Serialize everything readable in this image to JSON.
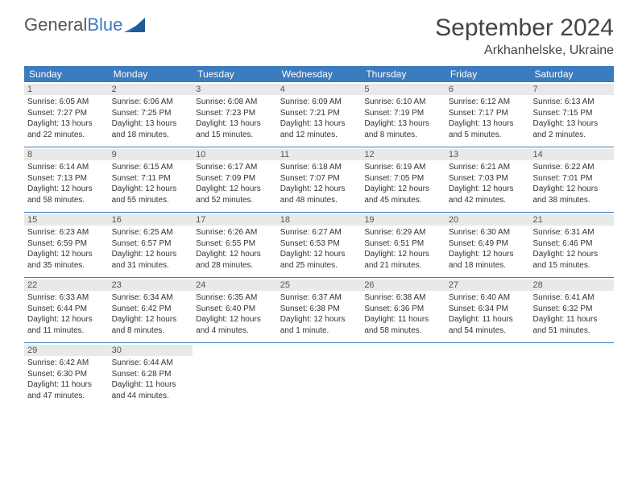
{
  "logo": {
    "text1": "General",
    "text2": "Blue"
  },
  "title": "September 2024",
  "location": "Arkhanhelske, Ukraine",
  "colors": {
    "header_bg": "#3b7bbf",
    "daynum_bg": "#e9e9e9",
    "text": "#333333",
    "title_text": "#444444",
    "divider": "#3b7bbf"
  },
  "typography": {
    "title_fontsize": 30,
    "location_fontsize": 16,
    "weekday_fontsize": 12,
    "daynum_fontsize": 11,
    "content_fontsize": 10
  },
  "weekdays": [
    "Sunday",
    "Monday",
    "Tuesday",
    "Wednesday",
    "Thursday",
    "Friday",
    "Saturday"
  ],
  "days": [
    {
      "n": "1",
      "sr": "6:05 AM",
      "ss": "7:27 PM",
      "dl": "13 hours and 22 minutes."
    },
    {
      "n": "2",
      "sr": "6:06 AM",
      "ss": "7:25 PM",
      "dl": "13 hours and 18 minutes."
    },
    {
      "n": "3",
      "sr": "6:08 AM",
      "ss": "7:23 PM",
      "dl": "13 hours and 15 minutes."
    },
    {
      "n": "4",
      "sr": "6:09 AM",
      "ss": "7:21 PM",
      "dl": "13 hours and 12 minutes."
    },
    {
      "n": "5",
      "sr": "6:10 AM",
      "ss": "7:19 PM",
      "dl": "13 hours and 8 minutes."
    },
    {
      "n": "6",
      "sr": "6:12 AM",
      "ss": "7:17 PM",
      "dl": "13 hours and 5 minutes."
    },
    {
      "n": "7",
      "sr": "6:13 AM",
      "ss": "7:15 PM",
      "dl": "13 hours and 2 minutes."
    },
    {
      "n": "8",
      "sr": "6:14 AM",
      "ss": "7:13 PM",
      "dl": "12 hours and 58 minutes."
    },
    {
      "n": "9",
      "sr": "6:15 AM",
      "ss": "7:11 PM",
      "dl": "12 hours and 55 minutes."
    },
    {
      "n": "10",
      "sr": "6:17 AM",
      "ss": "7:09 PM",
      "dl": "12 hours and 52 minutes."
    },
    {
      "n": "11",
      "sr": "6:18 AM",
      "ss": "7:07 PM",
      "dl": "12 hours and 48 minutes."
    },
    {
      "n": "12",
      "sr": "6:19 AM",
      "ss": "7:05 PM",
      "dl": "12 hours and 45 minutes."
    },
    {
      "n": "13",
      "sr": "6:21 AM",
      "ss": "7:03 PM",
      "dl": "12 hours and 42 minutes."
    },
    {
      "n": "14",
      "sr": "6:22 AM",
      "ss": "7:01 PM",
      "dl": "12 hours and 38 minutes."
    },
    {
      "n": "15",
      "sr": "6:23 AM",
      "ss": "6:59 PM",
      "dl": "12 hours and 35 minutes."
    },
    {
      "n": "16",
      "sr": "6:25 AM",
      "ss": "6:57 PM",
      "dl": "12 hours and 31 minutes."
    },
    {
      "n": "17",
      "sr": "6:26 AM",
      "ss": "6:55 PM",
      "dl": "12 hours and 28 minutes."
    },
    {
      "n": "18",
      "sr": "6:27 AM",
      "ss": "6:53 PM",
      "dl": "12 hours and 25 minutes."
    },
    {
      "n": "19",
      "sr": "6:29 AM",
      "ss": "6:51 PM",
      "dl": "12 hours and 21 minutes."
    },
    {
      "n": "20",
      "sr": "6:30 AM",
      "ss": "6:49 PM",
      "dl": "12 hours and 18 minutes."
    },
    {
      "n": "21",
      "sr": "6:31 AM",
      "ss": "6:46 PM",
      "dl": "12 hours and 15 minutes."
    },
    {
      "n": "22",
      "sr": "6:33 AM",
      "ss": "6:44 PM",
      "dl": "12 hours and 11 minutes."
    },
    {
      "n": "23",
      "sr": "6:34 AM",
      "ss": "6:42 PM",
      "dl": "12 hours and 8 minutes."
    },
    {
      "n": "24",
      "sr": "6:35 AM",
      "ss": "6:40 PM",
      "dl": "12 hours and 4 minutes."
    },
    {
      "n": "25",
      "sr": "6:37 AM",
      "ss": "6:38 PM",
      "dl": "12 hours and 1 minute."
    },
    {
      "n": "26",
      "sr": "6:38 AM",
      "ss": "6:36 PM",
      "dl": "11 hours and 58 minutes."
    },
    {
      "n": "27",
      "sr": "6:40 AM",
      "ss": "6:34 PM",
      "dl": "11 hours and 54 minutes."
    },
    {
      "n": "28",
      "sr": "6:41 AM",
      "ss": "6:32 PM",
      "dl": "11 hours and 51 minutes."
    },
    {
      "n": "29",
      "sr": "6:42 AM",
      "ss": "6:30 PM",
      "dl": "11 hours and 47 minutes."
    },
    {
      "n": "30",
      "sr": "6:44 AM",
      "ss": "6:28 PM",
      "dl": "11 hours and 44 minutes."
    }
  ],
  "labels": {
    "sunrise": "Sunrise:",
    "sunset": "Sunset:",
    "daylight": "Daylight:"
  }
}
